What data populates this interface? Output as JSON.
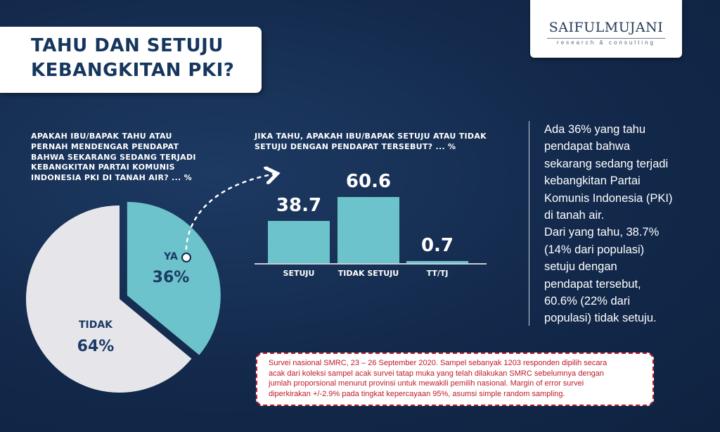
{
  "title": {
    "line1": "TAHU DAN SETUJU",
    "line2": "KEBANGKITAN PKI?"
  },
  "logo": {
    "name": "SAIFULMUJANI",
    "subtitle": "research & consulting"
  },
  "question1": {
    "lines": [
      "APAKAH IBU/BAPAK TAHU ATAU",
      "PERNAH MENDENGAR PENDAPAT",
      "BAHWA SEKARANG SEDANG TERJADI",
      "KEBANGKITAN PARTAI KOMUNIS",
      "INDONESIA  PKI  DI TANAH AIR? ...  %"
    ]
  },
  "question2": {
    "lines": [
      "JIKA TAHU, APAKAH IBU/BAPAK SETUJU ATAU TIDAK",
      "SETUJU DENGAN PENDAPAT TERSEBUT? ...  %"
    ]
  },
  "chart_data": [
    {
      "type": "pie",
      "slices": [
        {
          "label": "YA",
          "value": 36,
          "display": "36%",
          "color": "#6cc3cb"
        },
        {
          "label": "TIDAK",
          "value": 64,
          "display": "64%",
          "color": "#e6e6ea"
        }
      ]
    },
    {
      "type": "bar",
      "categories": [
        "SETUJU",
        "TIDAK SETUJU",
        "TT/TJ"
      ],
      "values": [
        38.7,
        60.6,
        0.7
      ],
      "value_labels": [
        "38.7",
        "60.6",
        "0.7"
      ],
      "bar_color": "#6cc3cb"
    }
  ],
  "summary": {
    "lines": [
      "Ada 36% yang tahu",
      "pendapat bahwa",
      "sekarang sedang terjadi",
      "kebangkitan Partai",
      "Komunis Indonesia (PKI)",
      "di tanah air.",
      "Dari yang tahu, 38.7%",
      "(14% dari populasi)",
      "setuju dengan",
      "pendapat tersebut,",
      "60.6% (22% dari",
      "populasi) tidak setuju."
    ]
  },
  "note": {
    "lines": [
      "Survei nasional SMRC, 23 – 26 September 2020. Sampel sebanyak 1203 responden dipilih secara",
      "acak dari koleksi sampel acak survei tatap muka yang telah dilakukan SMRC sebelumnya dengan",
      "jumlah proporsional menurut provinsi untuk mewakili pemilih nasional. Margin of error survei",
      "diperkirakan +/-2.9% pada tingkat kepercayaan 95%, asumsi simple random sampling."
    ]
  },
  "colors": {
    "background": "#13294b",
    "accent": "#6cc3cb",
    "title": "#16365e",
    "note": "#c0192a"
  }
}
